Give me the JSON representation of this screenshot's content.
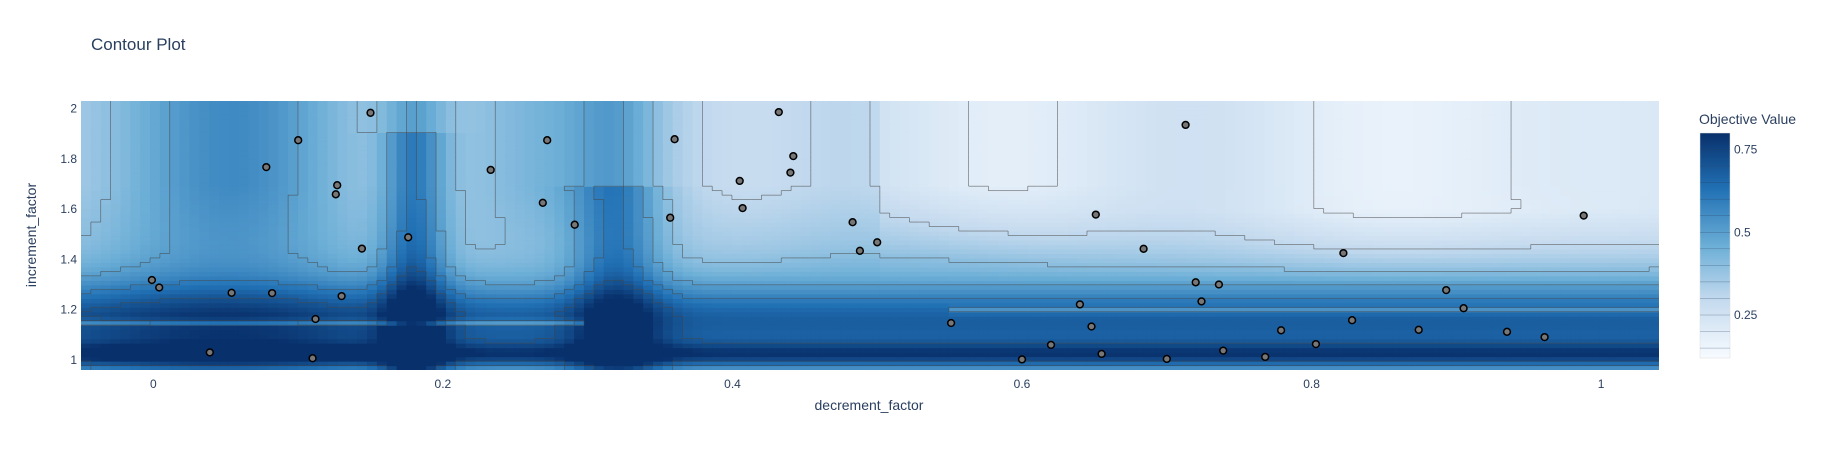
{
  "chart_data": {
    "type": "contour",
    "title": "Contour Plot",
    "xlabel": "decrement_factor",
    "ylabel": "increment_factor",
    "xlim": [
      -0.05,
      1.04
    ],
    "ylim": [
      0.96,
      2.03
    ],
    "x_ticks": [
      0,
      0.2,
      0.4,
      0.6,
      0.8,
      1
    ],
    "x_tick_labels": [
      "0",
      "0.2",
      "0.4",
      "0.6",
      "0.8",
      "1"
    ],
    "y_ticks": [
      1,
      1.2,
      1.4,
      1.6,
      1.8,
      2
    ],
    "y_tick_labels": [
      "1",
      "1.2",
      "1.4",
      "1.6",
      "1.8",
      "2"
    ],
    "colorbar": {
      "title": "Objective Value",
      "ticks": [
        0.25,
        0.5,
        0.75
      ],
      "tick_labels": [
        "0.25",
        "0.5",
        "0.75"
      ],
      "range": [
        0.12,
        0.8
      ],
      "colorscale": "Blues"
    },
    "colors": {
      "low": "#f7fbff",
      "mid": "#6baed6",
      "high": "#08306b",
      "marker_fill": "#777777",
      "marker_edge": "#000000"
    },
    "points": [
      {
        "x": -0.001,
        "y": 1.318
      },
      {
        "x": 0.004,
        "y": 1.288
      },
      {
        "x": 0.039,
        "y": 1.03
      },
      {
        "x": 0.054,
        "y": 1.267
      },
      {
        "x": 0.078,
        "y": 1.767
      },
      {
        "x": 0.082,
        "y": 1.266
      },
      {
        "x": 0.1,
        "y": 1.874
      },
      {
        "x": 0.11,
        "y": 1.007
      },
      {
        "x": 0.112,
        "y": 1.163
      },
      {
        "x": 0.126,
        "y": 1.659
      },
      {
        "x": 0.127,
        "y": 1.695
      },
      {
        "x": 0.13,
        "y": 1.254
      },
      {
        "x": 0.15,
        "y": 1.983
      },
      {
        "x": 0.144,
        "y": 1.443
      },
      {
        "x": 0.176,
        "y": 1.488
      },
      {
        "x": 0.233,
        "y": 1.756
      },
      {
        "x": 0.272,
        "y": 1.874
      },
      {
        "x": 0.269,
        "y": 1.625
      },
      {
        "x": 0.291,
        "y": 1.538
      },
      {
        "x": 0.36,
        "y": 1.878
      },
      {
        "x": 0.357,
        "y": 1.566
      },
      {
        "x": 0.405,
        "y": 1.712
      },
      {
        "x": 0.407,
        "y": 1.604
      },
      {
        "x": 0.432,
        "y": 1.986
      },
      {
        "x": 0.442,
        "y": 1.811
      },
      {
        "x": 0.44,
        "y": 1.745
      },
      {
        "x": 0.483,
        "y": 1.548
      },
      {
        "x": 0.488,
        "y": 1.434
      },
      {
        "x": 0.5,
        "y": 1.468
      },
      {
        "x": 0.651,
        "y": 1.578
      },
      {
        "x": 0.684,
        "y": 1.442
      },
      {
        "x": 0.713,
        "y": 1.935
      },
      {
        "x": 0.72,
        "y": 1.309
      },
      {
        "x": 0.736,
        "y": 1.3
      },
      {
        "x": 0.822,
        "y": 1.425
      },
      {
        "x": 0.988,
        "y": 1.574
      },
      {
        "x": 0.893,
        "y": 1.278
      },
      {
        "x": 0.905,
        "y": 1.206
      },
      {
        "x": 0.64,
        "y": 1.221
      },
      {
        "x": 0.724,
        "y": 1.233
      },
      {
        "x": 0.828,
        "y": 1.158
      },
      {
        "x": 0.779,
        "y": 1.118
      },
      {
        "x": 0.7,
        "y": 1.004
      },
      {
        "x": 0.768,
        "y": 1.012
      },
      {
        "x": 0.803,
        "y": 1.063
      },
      {
        "x": 0.874,
        "y": 1.12
      },
      {
        "x": 0.935,
        "y": 1.112
      },
      {
        "x": 0.961,
        "y": 1.091
      },
      {
        "x": 0.655,
        "y": 1.024
      },
      {
        "x": 0.739,
        "y": 1.037
      },
      {
        "x": 0.6,
        "y": 1.002
      },
      {
        "x": 0.648,
        "y": 1.133
      },
      {
        "x": 0.62,
        "y": 1.06
      },
      {
        "x": 0.551,
        "y": 1.147
      }
    ]
  }
}
